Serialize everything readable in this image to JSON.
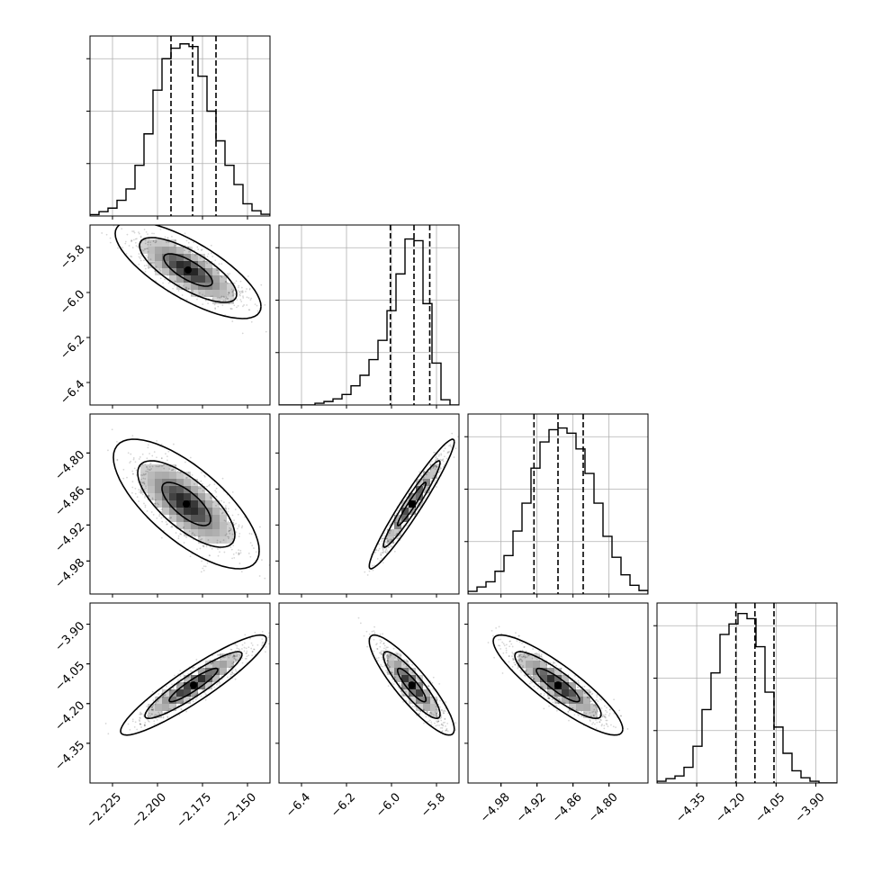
{
  "chart_data": {
    "type": "corner",
    "grid": true,
    "parameters": [
      {
        "id": "p0",
        "range": [
          -2.2375,
          -2.1375
        ],
        "ticks": [
          -2.225,
          -2.2,
          -2.175,
          -2.15
        ],
        "tick_labels": [
          "−2.225",
          "−2.200",
          "−2.175",
          "−2.150"
        ],
        "quantiles": [
          -2.1925,
          -2.1805,
          -2.1675
        ],
        "hist": [
          0.008,
          0.025,
          0.045,
          0.09,
          0.155,
          0.29,
          0.47,
          0.72,
          0.9,
          0.96,
          0.985,
          0.97,
          0.8,
          0.6,
          0.43,
          0.29,
          0.18,
          0.07,
          0.03,
          0.01
        ]
      },
      {
        "id": "p1",
        "range": [
          -6.5,
          -5.7
        ],
        "ticks": [
          -6.4,
          -6.2,
          -6.0,
          -5.8
        ],
        "tick_labels": [
          "−6.4",
          "−6.2",
          "−6.0",
          "−5.8"
        ],
        "quantiles": [
          -6.005,
          -5.9,
          -5.83
        ],
        "hist": [
          0.0,
          0.0,
          0.0,
          0.0,
          0.01,
          0.02,
          0.035,
          0.06,
          0.11,
          0.17,
          0.26,
          0.37,
          0.54,
          0.75,
          0.95,
          0.94,
          0.58,
          0.24,
          0.03,
          0.0
        ]
      },
      {
        "id": "p2",
        "range": [
          -5.035,
          -4.735
        ],
        "ticks": [
          -4.98,
          -4.92,
          -4.86,
          -4.8
        ],
        "tick_labels": [
          "−4.98",
          "−4.92",
          "−4.86",
          "−4.80"
        ],
        "quantiles": [
          -4.925,
          -4.885,
          -4.843
        ],
        "hist": [
          0.015,
          0.04,
          0.07,
          0.13,
          0.22,
          0.36,
          0.52,
          0.72,
          0.87,
          0.94,
          0.95,
          0.92,
          0.83,
          0.69,
          0.52,
          0.33,
          0.21,
          0.11,
          0.05,
          0.02
        ]
      },
      {
        "id": "p3",
        "range": [
          -4.5,
          -3.82
        ],
        "ticks": [
          -4.35,
          -4.2,
          -4.05,
          -3.9
        ],
        "tick_labels": [
          "−4.35",
          "−4.20",
          "−4.05",
          "−3.90"
        ],
        "quantiles": [
          -4.202,
          -4.13,
          -4.058
        ],
        "hist": [
          0.01,
          0.025,
          0.04,
          0.09,
          0.21,
          0.42,
          0.63,
          0.85,
          0.91,
          0.97,
          0.94,
          0.78,
          0.52,
          0.32,
          0.17,
          0.07,
          0.03,
          0.01,
          0.0,
          0.0
        ]
      }
    ],
    "pairs": [
      {
        "x": "p0",
        "y": "p1",
        "mean": [
          -2.183,
          -5.9
        ],
        "sd": [
          0.015,
          0.08
        ],
        "rho": -0.75
      },
      {
        "x": "p0",
        "y": "p2",
        "mean": [
          -2.184,
          -4.885
        ],
        "sd": [
          0.015,
          0.04
        ],
        "rho": -0.72
      },
      {
        "x": "p1",
        "y": "p2",
        "mean": [
          -5.91,
          -4.885
        ],
        "sd": [
          0.07,
          0.04
        ],
        "rho": 0.96
      },
      {
        "x": "p0",
        "y": "p3",
        "mean": [
          -2.18,
          -4.13
        ],
        "sd": [
          0.015,
          0.07
        ],
        "rho": 0.92
      },
      {
        "x": "p1",
        "y": "p3",
        "mean": [
          -5.91,
          -4.13
        ],
        "sd": [
          0.07,
          0.07
        ],
        "rho": -0.88
      },
      {
        "x": "p2",
        "y": "p3",
        "mean": [
          -4.885,
          -4.13
        ],
        "sd": [
          0.04,
          0.07
        ],
        "rho": -0.88
      }
    ]
  }
}
